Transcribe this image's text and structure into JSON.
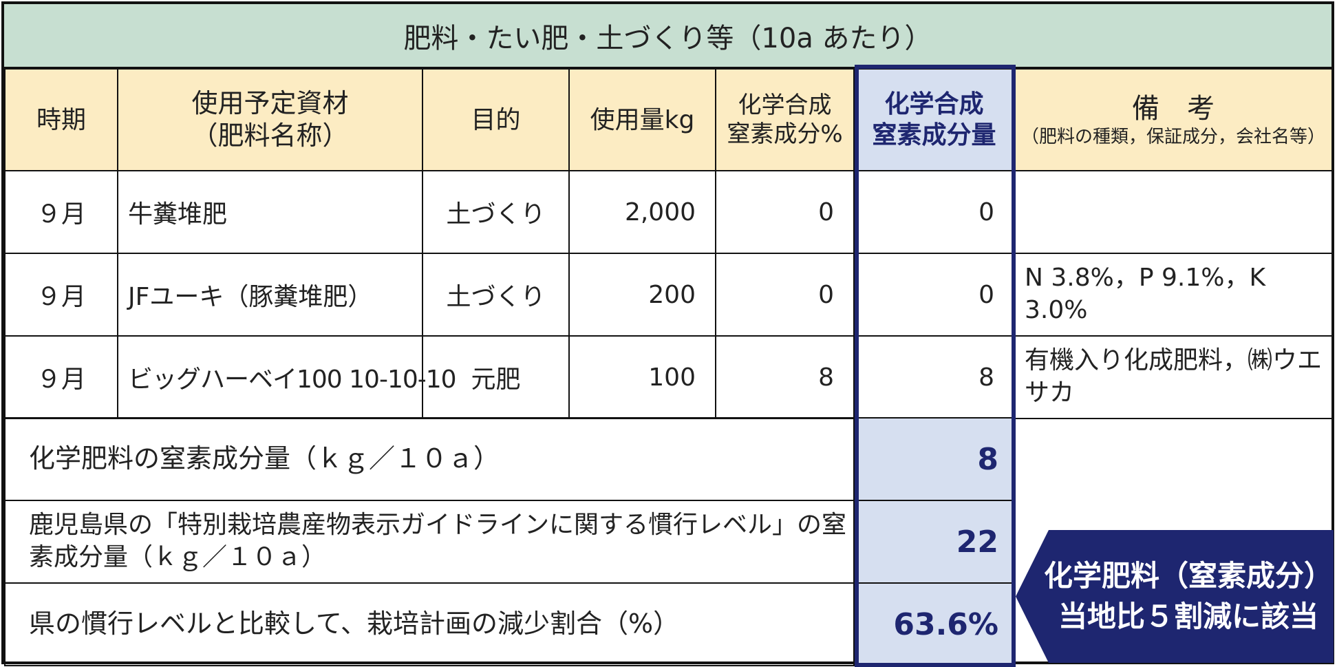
{
  "title": "肥料・たい肥・土づくり等（10a あたり）",
  "headers": {
    "period": "時期",
    "material_line1": "使用予定資材",
    "material_line2": "（肥料名称）",
    "purpose": "目的",
    "amount": "使用量kg",
    "chem_pct_line1": "化学合成",
    "chem_pct_line2": "窒素成分%",
    "chem_amt_line1": "化学合成",
    "chem_amt_line2": "窒素成分量",
    "remarks_line1": "備　考",
    "remarks_line2": "（肥料の種類，保証成分，会社名等）"
  },
  "rows": [
    {
      "period": "９月",
      "material": "牛糞堆肥",
      "purpose": "土づくり",
      "amount": "2,000",
      "chem_pct": "0",
      "chem_amt": "0",
      "remarks": ""
    },
    {
      "period": "９月",
      "material": "JFユーキ（豚糞堆肥）",
      "purpose": "土づくり",
      "amount": "200",
      "chem_pct": "0",
      "chem_amt": "0",
      "remarks": "N 3.8%，P 9.1%，K 3.0%"
    },
    {
      "period": "９月",
      "material": "ビッグハーベイ100  10-10-10",
      "purpose": "元肥",
      "amount": "100",
      "chem_pct": "8",
      "chem_amt": "8",
      "remarks": "有機入り化成肥料，㈱ウエサカ"
    }
  ],
  "summary": [
    {
      "label": "化学肥料の窒素成分量（ｋｇ／１０ａ）",
      "value": "8"
    },
    {
      "label": "鹿児島県の「特別栽培農産物表示ガイドラインに関する慣行レベル」の窒素成分量（ｋｇ／１０ａ）",
      "value": "22"
    },
    {
      "label": "県の慣行レベルと比較して、栽培計画の減少割合（%）",
      "value": "63.6%"
    }
  ],
  "callout": {
    "line1": "化学肥料（窒素成分）",
    "line2": "当地比５割減に該当"
  },
  "colors": {
    "title_bg": "#c7dfd1",
    "header_bg": "#fcecc3",
    "highlight_bg": "#d6dff0",
    "accent": "#1e2670"
  }
}
